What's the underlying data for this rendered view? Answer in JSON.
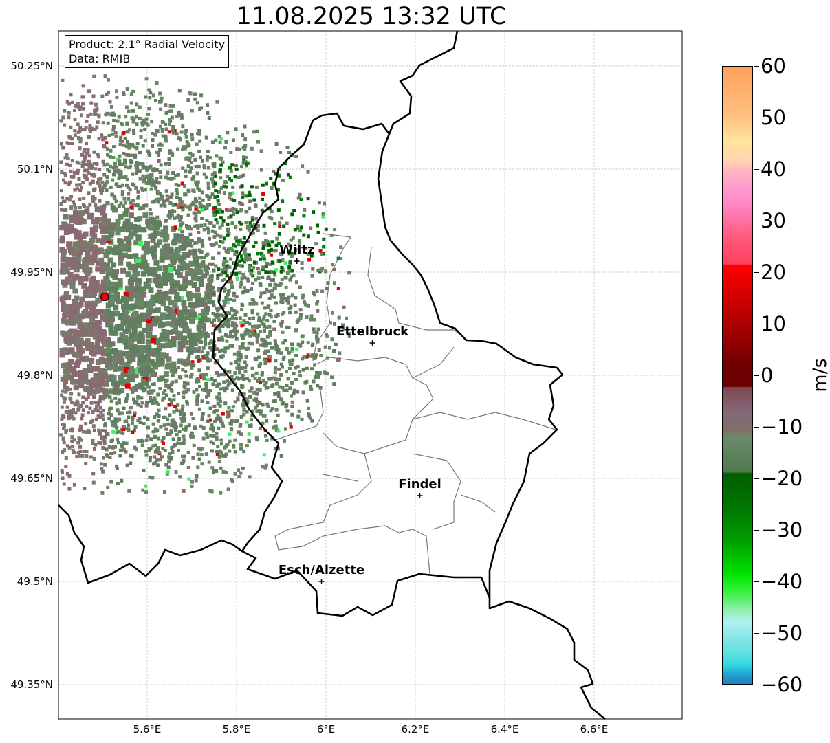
{
  "title": "11.08.2025 13:32 UTC",
  "info": {
    "product": "Product: 2.1° Radial Velocity",
    "data": "Data: RMIB"
  },
  "lat_ticks": [
    {
      "v": 50.25,
      "label": "50.25°N"
    },
    {
      "v": 50.1,
      "label": "50.1°N"
    },
    {
      "v": 49.95,
      "label": "49.95°N"
    },
    {
      "v": 49.8,
      "label": "49.8°N"
    },
    {
      "v": 49.65,
      "label": "49.65°N"
    },
    {
      "v": 49.5,
      "label": "49.5°N"
    },
    {
      "v": 49.35,
      "label": "49.35°N"
    }
  ],
  "lon_ticks": [
    {
      "v": 5.6,
      "label": "5.6°E"
    },
    {
      "v": 5.8,
      "label": "5.8°E"
    },
    {
      "v": 6.0,
      "label": "6°E"
    },
    {
      "v": 6.2,
      "label": "6.2°E"
    },
    {
      "v": 6.4,
      "label": "6.4°E"
    },
    {
      "v": 6.6,
      "label": "6.6°E"
    }
  ],
  "cities": [
    {
      "name": "Wiltz",
      "lon": 5.935,
      "lat": 49.966
    },
    {
      "name": "Ettelbruck",
      "lon": 6.104,
      "lat": 49.847
    },
    {
      "name": "Findel",
      "lon": 6.21,
      "lat": 49.625
    },
    {
      "name": "Esch/Alzette",
      "lon": 5.99,
      "lat": 49.5
    }
  ],
  "radar": {
    "lon": 5.505,
    "lat": 49.914
  },
  "colorbar": {
    "unit": "m/s",
    "min": -60,
    "max": 60,
    "ticks": [
      "60",
      "50",
      "40",
      "30",
      "20",
      "10",
      "0",
      "−10",
      "−20",
      "−30",
      "−40",
      "−50",
      "−60"
    ]
  }
}
